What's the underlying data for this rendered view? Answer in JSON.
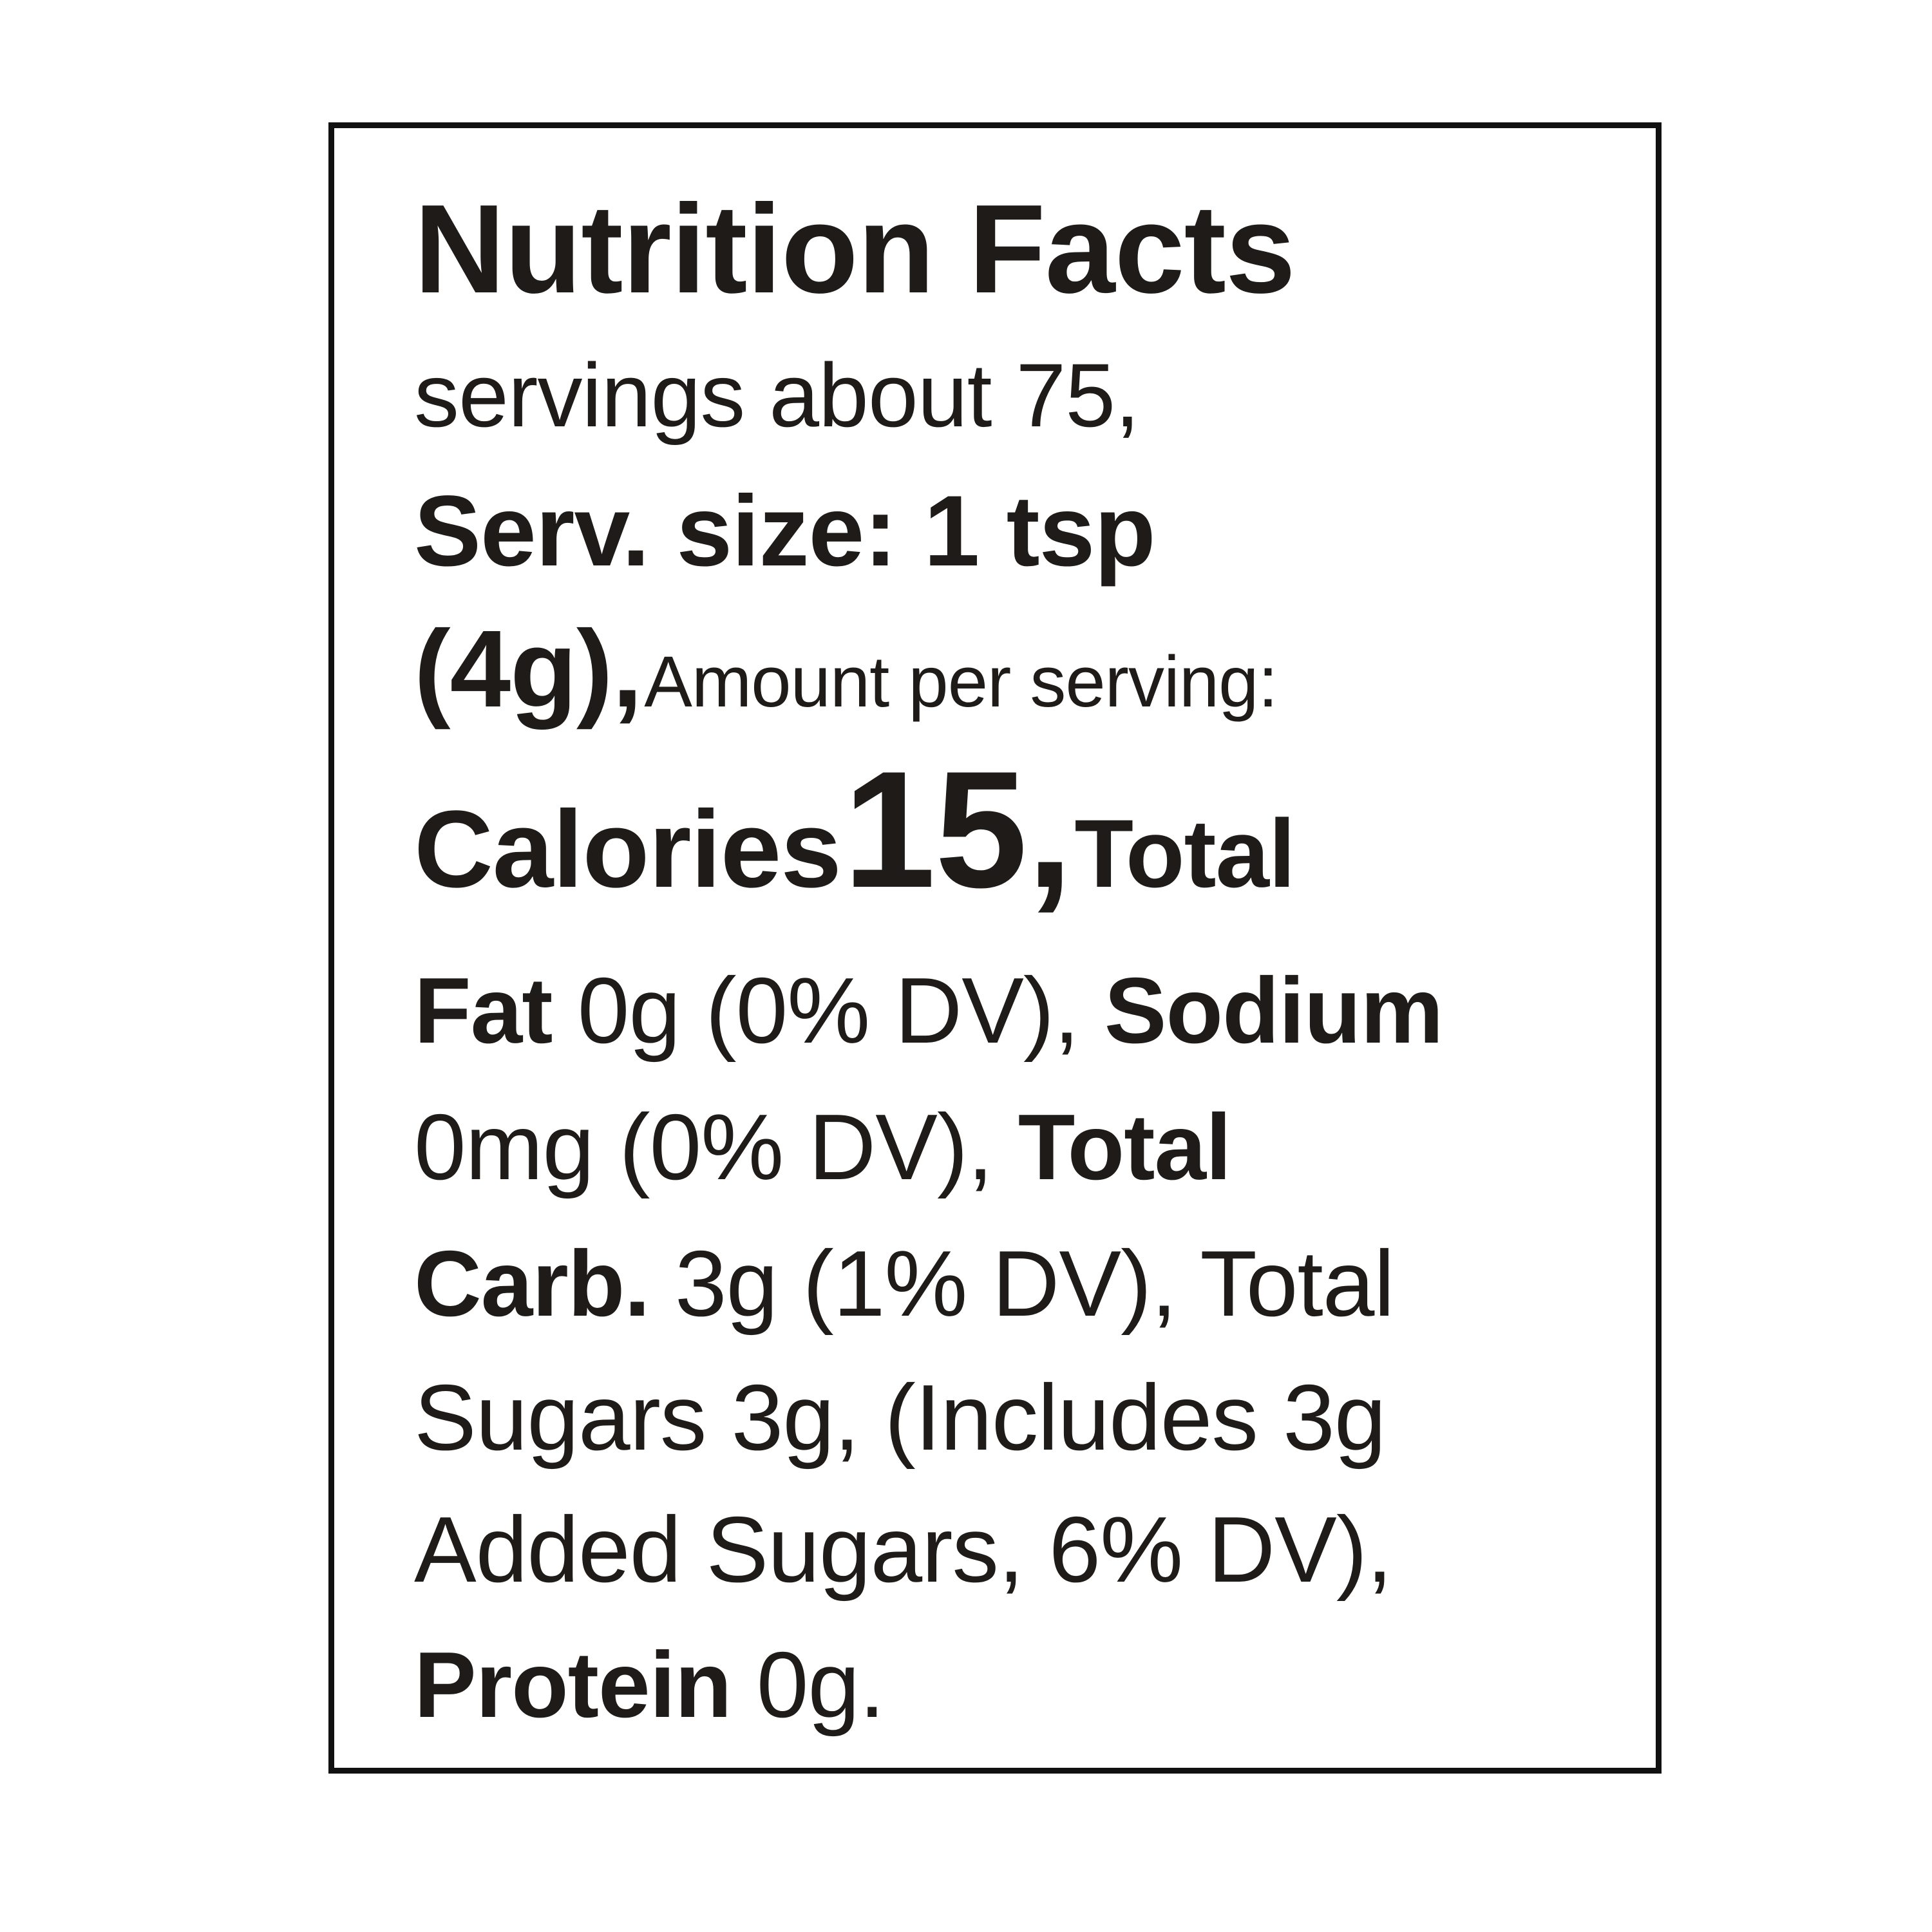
{
  "label": {
    "title": "Nutrition Facts",
    "servings": "servings about 75,",
    "serving_size": "Serv. size: 1 tsp",
    "serving_grams": "(4g),",
    "amount_per_serving": "Amount per serving:",
    "calories_label": "Calories",
    "calories_value": "15,",
    "total_label_1": "Total",
    "fat_label": "Fat",
    "fat_value": "0g (0% DV),",
    "sodium_label": "Sodium",
    "sodium_value": "0mg (0% DV),",
    "total_label_2": "Total",
    "carb_label": "Carb.",
    "carb_value": "3g (1% DV), Total",
    "sugars_line": "Sugars 3g, (Includes 3g",
    "added_sugars_line": "Added Sugars, 6% DV),",
    "protein_label": "Protein",
    "protein_value": "0g."
  }
}
